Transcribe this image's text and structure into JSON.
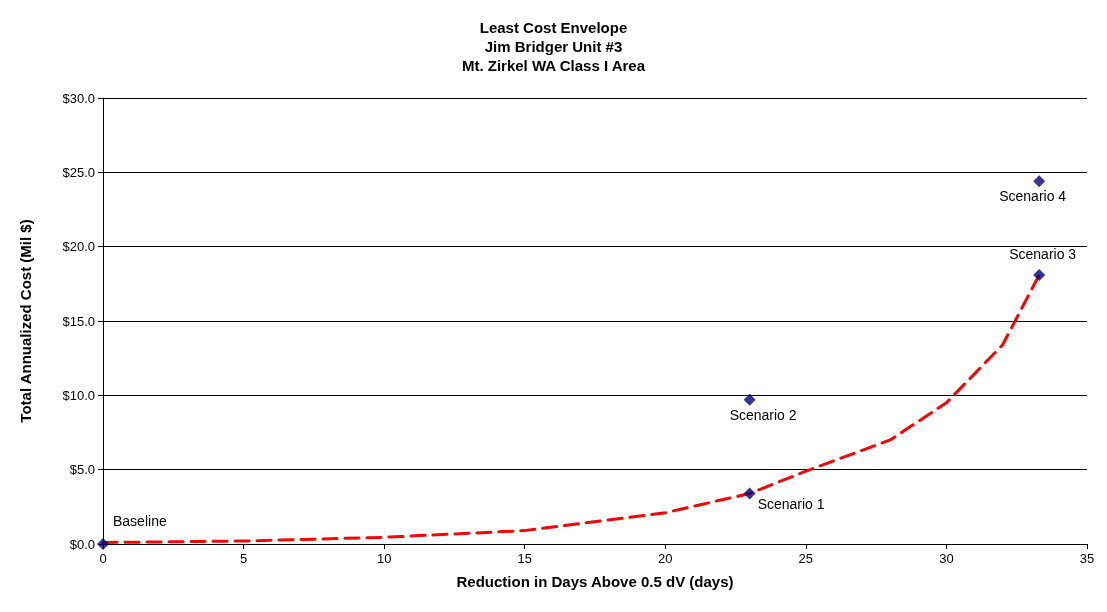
{
  "chart_data": {
    "type": "scatter",
    "title": "Least Cost Envelope\nJim Bridger Unit #3\nMt. Zirkel WA Class I Area",
    "xlabel": "Reduction in Days Above 0.5 dV (days)",
    "ylabel": "Total Annualized Cost (Mil $)",
    "series": [
      {
        "type": "line",
        "color": "#ff0000",
        "line_style": "dashed",
        "marker": "none",
        "x": [
          0,
          5,
          10,
          15,
          20,
          23,
          25,
          28,
          30,
          32,
          33.3
        ],
        "values": [
          0.1,
          0.2,
          0.45,
          0.9,
          2.1,
          3.4,
          4.9,
          7.0,
          9.5,
          13.4,
          18.1
        ]
      },
      {
        "color": "#000080",
        "marker": "diamond",
        "x": [
          0,
          23,
          23,
          33.3,
          33.3
        ],
        "values": [
          0,
          3.4,
          9.7,
          18.1,
          24.4
        ]
      }
    ],
    "xlim": [
      0,
      35
    ],
    "xticks": [
      0,
      5,
      10,
      15,
      20,
      25,
      30,
      35
    ],
    "ylim": [
      0,
      30
    ],
    "yticks": [
      {
        "value": 0,
        "label": "$0.0"
      },
      {
        "value": 5,
        "label": "$5.0"
      },
      {
        "value": 10,
        "label": "$10.0"
      },
      {
        "value": 15,
        "label": "$15.0"
      },
      {
        "value": 20,
        "label": "$20.0"
      },
      {
        "value": 25,
        "label": "$25.0"
      },
      {
        "value": 30,
        "label": "$30.0"
      }
    ],
    "grid": "y",
    "annotations": [
      {
        "text": "Baseline",
        "x": 0,
        "y": 0
      },
      {
        "text": "Scenario 1",
        "x": 23,
        "y": 3.4
      },
      {
        "text": "Scenario 2",
        "x": 23,
        "y": 9.7
      },
      {
        "text": "Scenario 3",
        "x": 33.3,
        "y": 18.1
      },
      {
        "text": "Scenario 4",
        "x": 33.3,
        "y": 24.4
      }
    ]
  }
}
